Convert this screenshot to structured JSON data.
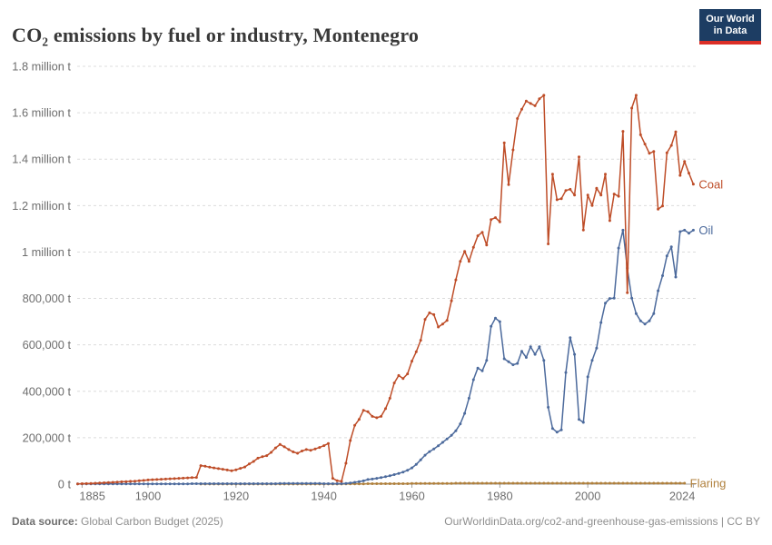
{
  "header": {
    "title": "CO₂ emissions by fuel or industry, Montenegro"
  },
  "logo": {
    "line1": "Our World",
    "line2": "in Data",
    "bg_color": "#1d3d63",
    "bar_color": "#dc2f27"
  },
  "footer": {
    "source_label": "Data source:",
    "source_text": " Global Carbon Budget (2025)",
    "credit": "OurWorldinData.org/co2-and-greenhouse-gas-emissions | CC BY"
  },
  "chart_data": {
    "type": "line",
    "title": "CO₂ emissions by fuel or industry, Montenegro",
    "unit": "t",
    "xlim": [
      1884,
      2024
    ],
    "ylim": [
      0,
      1800000
    ],
    "grid": true,
    "legend_position": "end-of-line-labels",
    "x_axis": {
      "ticks": [
        1885,
        1900,
        1920,
        1940,
        1960,
        1980,
        2000,
        2024
      ]
    },
    "y_axis": {
      "ticks": [
        {
          "value": 0,
          "label": "0 t"
        },
        {
          "value": 200000,
          "label": "200,000 t"
        },
        {
          "value": 400000,
          "label": "400,000 t"
        },
        {
          "value": 600000,
          "label": "600,000 t"
        },
        {
          "value": 800000,
          "label": "800,000 t"
        },
        {
          "value": 1000000,
          "label": "1 million t"
        },
        {
          "value": 1200000,
          "label": "1.2 million t"
        },
        {
          "value": 1400000,
          "label": "1.4 million t"
        },
        {
          "value": 1600000,
          "label": "1.6 million t"
        },
        {
          "value": 1800000,
          "label": "1.8 million t"
        }
      ]
    },
    "series": [
      {
        "name": "Flaring",
        "color": "#B0803C",
        "start_year": 1912,
        "values": [
          500,
          500,
          500,
          500,
          500,
          500,
          500,
          500,
          500,
          500,
          500,
          500,
          500,
          500,
          500,
          500,
          500,
          500,
          500,
          500,
          500,
          500,
          500,
          500,
          500,
          500,
          500,
          500,
          500,
          500,
          500,
          500,
          500,
          1000,
          1000,
          1000,
          1000,
          1000,
          2000,
          2000,
          2000,
          2000,
          2000,
          2000,
          2000,
          2000,
          2000,
          2000,
          3000,
          3000,
          3000,
          3000,
          3000,
          3000,
          3000,
          3000,
          3000,
          3000,
          4000,
          4000,
          4000,
          4000,
          4000,
          4000,
          4000,
          4000,
          4000,
          4000,
          4000,
          4000,
          4000,
          4000,
          4000,
          4000,
          4000,
          4000,
          4000,
          4000,
          4000,
          4000,
          4000,
          4000,
          4000,
          4000,
          4000,
          4000,
          4000,
          4000,
          4000,
          4000,
          4000,
          4000,
          4000,
          4000,
          4000,
          4000,
          4000,
          4000,
          4000,
          4000,
          4000,
          4000,
          4000,
          4000,
          4000,
          4000,
          4000,
          4000,
          4000,
          4000,
          4000
        ]
      },
      {
        "name": "Oil",
        "color": "#4C6A9C",
        "start_year": 1884,
        "values": [
          1000,
          1000,
          1000,
          1000,
          1000,
          1000,
          1000,
          1000,
          1000,
          1000,
          1000,
          1000,
          1000,
          1000,
          1000,
          1000,
          1000,
          1000,
          1000,
          1000,
          1000,
          1000,
          1000,
          1000,
          1000,
          1000,
          2000,
          2000,
          2000,
          2000,
          2000,
          2000,
          2000,
          2000,
          2000,
          2000,
          2000,
          2000,
          2000,
          2000,
          2000,
          2000,
          2000,
          2000,
          2000,
          2000,
          3000,
          3000,
          3000,
          3000,
          3000,
          3000,
          3000,
          3000,
          3000,
          3000,
          2000,
          2000,
          2000,
          2000,
          2000,
          3000,
          5000,
          8000,
          11000,
          14000,
          20000,
          22000,
          25000,
          28000,
          32000,
          36000,
          41000,
          46000,
          52000,
          60000,
          70000,
          85000,
          105000,
          125000,
          140000,
          152000,
          165000,
          180000,
          195000,
          210000,
          230000,
          260000,
          305000,
          370000,
          450000,
          500000,
          488000,
          533000,
          680000,
          715000,
          700000,
          540000,
          527000,
          514000,
          520000,
          572000,
          546000,
          592000,
          559000,
          592000,
          533000,
          331000,
          240000,
          224000,
          234000,
          481000,
          631000,
          559000,
          279000,
          266000,
          462000,
          533000,
          586000,
          696000,
          780000,
          800000,
          801000,
          1017000,
          1094000,
          931000,
          801000,
          735000,
          703000,
          690000,
          703000,
          735000,
          833000,
          898000,
          983000,
          1022000,
          892000,
          1088000,
          1094000,
          1081000,
          1094000
        ]
      },
      {
        "name": "Coal",
        "color": "#BE4D28",
        "start_year": 1884,
        "values": [
          1000,
          2000,
          2500,
          3000,
          4000,
          5000,
          6000,
          7000,
          8000,
          9000,
          10000,
          11000,
          12000,
          13000,
          15000,
          16000,
          18000,
          19000,
          20000,
          21000,
          22000,
          23000,
          24000,
          25000,
          26000,
          27000,
          28000,
          29000,
          80000,
          77000,
          73000,
          70000,
          67000,
          64000,
          61000,
          58000,
          62000,
          68000,
          74000,
          87000,
          98000,
          112000,
          118000,
          123000,
          137000,
          156000,
          171000,
          161000,
          149000,
          139000,
          133000,
          143000,
          149000,
          146000,
          152000,
          158000,
          166000,
          175000,
          25000,
          15000,
          12000,
          90000,
          188000,
          253000,
          279000,
          318000,
          312000,
          292000,
          286000,
          292000,
          325000,
          370000,
          436000,
          468000,
          455000,
          475000,
          530000,
          570000,
          620000,
          710000,
          738000,
          730000,
          677000,
          690000,
          705000,
          790000,
          880000,
          960000,
          1003000,
          960000,
          1020000,
          1070000,
          1085000,
          1030000,
          1140000,
          1148000,
          1130000,
          1470000,
          1290000,
          1440000,
          1575000,
          1615000,
          1650000,
          1640000,
          1630000,
          1660000,
          1675000,
          1035000,
          1335000,
          1225000,
          1230000,
          1265000,
          1270000,
          1245000,
          1410000,
          1095000,
          1245000,
          1200000,
          1275000,
          1245000,
          1335000,
          1135000,
          1250000,
          1240000,
          1520000,
          825000,
          1620000,
          1675000,
          1505000,
          1465000,
          1425000,
          1433000,
          1185000,
          1198000,
          1427000,
          1459000,
          1518000,
          1330000,
          1390000,
          1340000,
          1292000
        ]
      }
    ],
    "style": {
      "grid_color": "#dcdcdc",
      "zero_line_color": "#a3a3a3",
      "tick_text_color": "#6e6e6e"
    }
  }
}
